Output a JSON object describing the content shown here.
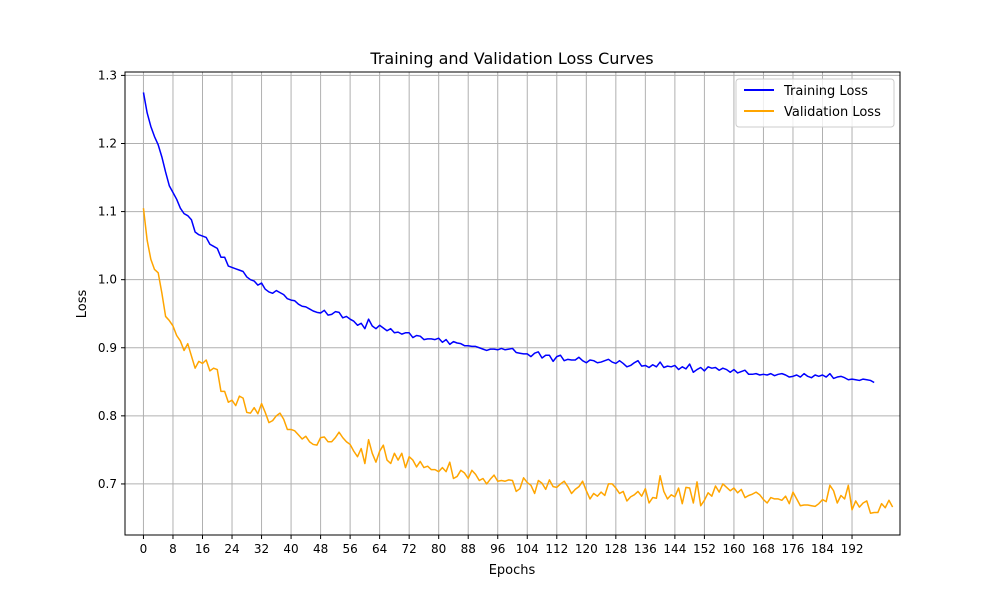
{
  "chart_data": {
    "type": "line",
    "title": "Training and Validation Loss Curves",
    "xlabel": "Epochs",
    "ylabel": "Loss",
    "xlim": [
      -5,
      205
    ],
    "ylim": [
      0.625,
      1.305
    ],
    "x_ticks": [
      0,
      8,
      16,
      24,
      32,
      40,
      48,
      56,
      64,
      72,
      80,
      88,
      96,
      104,
      112,
      120,
      128,
      136,
      144,
      152,
      160,
      168,
      176,
      184,
      192
    ],
    "y_ticks": [
      0.7,
      0.8,
      0.9,
      1.0,
      1.1,
      1.2,
      1.3
    ],
    "y_tick_labels": [
      "0.7",
      "0.8",
      "0.9",
      "1.0",
      "1.1",
      "1.2",
      "1.3"
    ],
    "grid": true,
    "legend_position": "top-right",
    "series": [
      {
        "name": "Training Loss",
        "color": "#0000ff",
        "values": [
          1.275,
          1.245,
          1.225,
          1.21,
          1.198,
          1.18,
          1.158,
          1.138,
          1.128,
          1.118,
          1.105,
          1.097,
          1.094,
          1.088,
          1.07,
          1.066,
          1.064,
          1.062,
          1.052,
          1.049,
          1.046,
          1.033,
          1.033,
          1.02,
          1.018,
          1.016,
          1.014,
          1.012,
          1.004,
          1.0,
          0.998,
          0.992,
          0.995,
          0.986,
          0.982,
          0.98,
          0.984,
          0.981,
          0.978,
          0.972,
          0.97,
          0.969,
          0.964,
          0.961,
          0.96,
          0.957,
          0.954,
          0.952,
          0.951,
          0.955,
          0.948,
          0.949,
          0.953,
          0.952,
          0.944,
          0.946,
          0.942,
          0.939,
          0.933,
          0.936,
          0.928,
          0.942,
          0.932,
          0.928,
          0.933,
          0.929,
          0.925,
          0.928,
          0.922,
          0.923,
          0.92,
          0.922,
          0.922,
          0.915,
          0.918,
          0.917,
          0.912,
          0.913,
          0.913,
          0.912,
          0.914,
          0.908,
          0.912,
          0.905,
          0.909,
          0.907,
          0.906,
          0.903,
          0.903,
          0.902,
          0.902,
          0.9,
          0.898,
          0.896,
          0.898,
          0.898,
          0.897,
          0.899,
          0.897,
          0.898,
          0.899,
          0.893,
          0.892,
          0.891,
          0.891,
          0.887,
          0.892,
          0.894,
          0.885,
          0.889,
          0.889,
          0.88,
          0.887,
          0.889,
          0.881,
          0.883,
          0.882,
          0.882,
          0.886,
          0.881,
          0.878,
          0.882,
          0.881,
          0.878,
          0.879,
          0.881,
          0.883,
          0.879,
          0.877,
          0.881,
          0.877,
          0.872,
          0.874,
          0.878,
          0.881,
          0.873,
          0.874,
          0.871,
          0.875,
          0.872,
          0.879,
          0.871,
          0.873,
          0.872,
          0.874,
          0.868,
          0.872,
          0.869,
          0.876,
          0.864,
          0.868,
          0.871,
          0.866,
          0.872,
          0.87,
          0.871,
          0.867,
          0.87,
          0.868,
          0.864,
          0.868,
          0.863,
          0.865,
          0.867,
          0.861,
          0.861,
          0.862,
          0.86,
          0.861,
          0.86,
          0.862,
          0.859,
          0.861,
          0.862,
          0.86,
          0.857,
          0.858,
          0.86,
          0.857,
          0.862,
          0.858,
          0.856,
          0.86,
          0.858,
          0.86,
          0.857,
          0.862,
          0.855,
          0.857,
          0.858,
          0.856,
          0.853,
          0.854,
          0.853,
          0.852,
          0.854,
          0.853,
          0.852,
          0.849
        ]
      },
      {
        "name": "Validation Loss",
        "color": "#ffa500",
        "values": [
          1.105,
          1.058,
          1.03,
          1.015,
          1.01,
          0.98,
          0.946,
          0.94,
          0.932,
          0.918,
          0.91,
          0.896,
          0.906,
          0.888,
          0.87,
          0.88,
          0.877,
          0.882,
          0.866,
          0.87,
          0.868,
          0.836,
          0.836,
          0.82,
          0.823,
          0.815,
          0.829,
          0.826,
          0.805,
          0.804,
          0.812,
          0.803,
          0.818,
          0.805,
          0.79,
          0.793,
          0.8,
          0.804,
          0.795,
          0.78,
          0.78,
          0.778,
          0.772,
          0.766,
          0.77,
          0.762,
          0.758,
          0.757,
          0.768,
          0.769,
          0.762,
          0.762,
          0.768,
          0.776,
          0.768,
          0.762,
          0.758,
          0.748,
          0.74,
          0.752,
          0.73,
          0.765,
          0.745,
          0.732,
          0.748,
          0.757,
          0.735,
          0.73,
          0.745,
          0.735,
          0.745,
          0.724,
          0.74,
          0.735,
          0.725,
          0.733,
          0.724,
          0.726,
          0.721,
          0.721,
          0.718,
          0.724,
          0.718,
          0.732,
          0.708,
          0.711,
          0.72,
          0.716,
          0.708,
          0.72,
          0.714,
          0.705,
          0.708,
          0.7,
          0.707,
          0.713,
          0.704,
          0.705,
          0.704,
          0.706,
          0.705,
          0.689,
          0.693,
          0.709,
          0.702,
          0.698,
          0.686,
          0.705,
          0.701,
          0.692,
          0.706,
          0.696,
          0.695,
          0.7,
          0.704,
          0.696,
          0.686,
          0.692,
          0.696,
          0.704,
          0.69,
          0.678,
          0.686,
          0.682,
          0.688,
          0.683,
          0.7,
          0.7,
          0.694,
          0.686,
          0.689,
          0.675,
          0.681,
          0.684,
          0.689,
          0.682,
          0.693,
          0.672,
          0.68,
          0.679,
          0.712,
          0.689,
          0.678,
          0.684,
          0.681,
          0.694,
          0.671,
          0.695,
          0.694,
          0.672,
          0.703,
          0.668,
          0.676,
          0.687,
          0.682,
          0.697,
          0.688,
          0.7,
          0.695,
          0.69,
          0.694,
          0.687,
          0.692,
          0.68,
          0.683,
          0.685,
          0.688,
          0.684,
          0.677,
          0.672,
          0.68,
          0.678,
          0.678,
          0.676,
          0.682,
          0.671,
          0.688,
          0.678,
          0.668,
          0.669,
          0.669,
          0.668,
          0.667,
          0.671,
          0.677,
          0.674,
          0.698,
          0.69,
          0.672,
          0.683,
          0.678,
          0.698,
          0.662,
          0.675,
          0.666,
          0.672,
          0.675,
          0.657,
          0.658,
          0.658,
          0.671,
          0.665,
          0.676,
          0.666
        ]
      }
    ]
  }
}
